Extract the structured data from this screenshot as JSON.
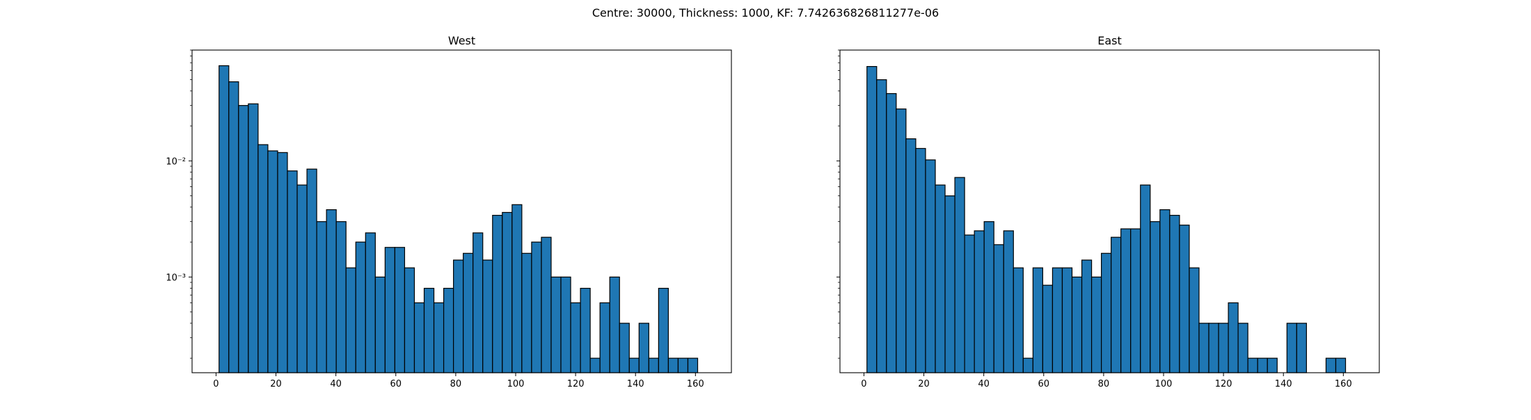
{
  "figure": {
    "suptitle": "Centre: 30000, Thickness: 1000, KF: 7.742636826811277e-06"
  },
  "chart_data": [
    {
      "type": "bar",
      "title": "West",
      "xlabel": "",
      "ylabel": "",
      "y_scale": "log",
      "xlim": [
        -8,
        172
      ],
      "ylim": [
        0.00015,
        0.09
      ],
      "xticks": [
        0,
        20,
        40,
        60,
        80,
        100,
        120,
        140,
        160
      ],
      "yticks": [
        0.001,
        0.01
      ],
      "ytick_labels": [
        "10⁻³",
        "10⁻²"
      ],
      "grid": false,
      "bar_color": "#1f77b4",
      "edge_color": "#000000",
      "bin_start": 1,
      "bin_width": 3.26,
      "values": [
        0.066,
        0.048,
        0.03,
        0.031,
        0.0138,
        0.0122,
        0.0118,
        0.0082,
        0.0062,
        0.0085,
        0.003,
        0.0038,
        0.003,
        0.0012,
        0.002,
        0.0024,
        0.001,
        0.0018,
        0.0018,
        0.0012,
        0.0006,
        0.0008,
        0.0006,
        0.0008,
        0.0014,
        0.0016,
        0.0024,
        0.0014,
        0.0034,
        0.0036,
        0.0042,
        0.0016,
        0.002,
        0.0022,
        0.001,
        0.001,
        0.0006,
        0.0008,
        0.0002,
        0.0006,
        0.001,
        0.0004,
        0.0002,
        0.0004,
        0.0002,
        0.0008,
        0.0002,
        0.0002,
        0.0002
      ]
    },
    {
      "type": "bar",
      "title": "East",
      "xlabel": "",
      "ylabel": "",
      "y_scale": "log",
      "xlim": [
        -8,
        172
      ],
      "ylim": [
        0.00015,
        0.09
      ],
      "xticks": [
        0,
        20,
        40,
        60,
        80,
        100,
        120,
        140,
        160
      ],
      "yticks": [
        0.001,
        0.01
      ],
      "ytick_labels": [
        "",
        ""
      ],
      "grid": false,
      "bar_color": "#1f77b4",
      "edge_color": "#000000",
      "bin_start": 1,
      "bin_width": 3.26,
      "values": [
        0.065,
        0.05,
        0.038,
        0.028,
        0.0155,
        0.0128,
        0.0102,
        0.0062,
        0.005,
        0.0072,
        0.0023,
        0.0025,
        0.003,
        0.0019,
        0.0025,
        0.0012,
        0.0002,
        0.0012,
        0.00085,
        0.0012,
        0.0012,
        0.001,
        0.0014,
        0.001,
        0.0016,
        0.0022,
        0.0026,
        0.0026,
        0.0062,
        0.003,
        0.0038,
        0.0034,
        0.0028,
        0.0012,
        0.0004,
        0.0004,
        0.0004,
        0.0006,
        0.0004,
        0.0002,
        0.0002,
        0.0002,
        0,
        0.0004,
        0.0004,
        0,
        0,
        0.0002,
        0.0002
      ]
    }
  ]
}
